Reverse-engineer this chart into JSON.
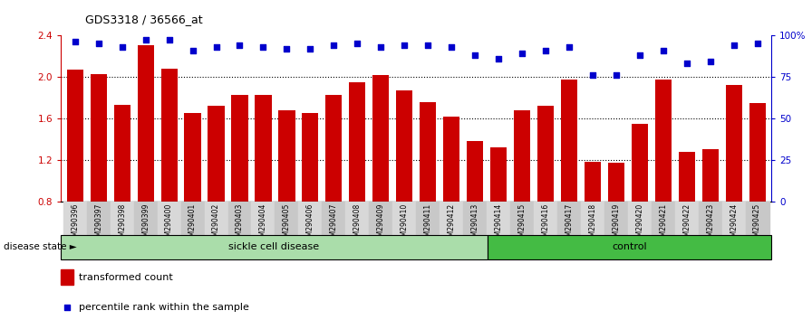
{
  "title": "GDS3318 / 36566_at",
  "samples": [
    "GSM290396",
    "GSM290397",
    "GSM290398",
    "GSM290399",
    "GSM290400",
    "GSM290401",
    "GSM290402",
    "GSM290403",
    "GSM290404",
    "GSM290405",
    "GSM290406",
    "GSM290407",
    "GSM290408",
    "GSM290409",
    "GSM290410",
    "GSM290411",
    "GSM290412",
    "GSM290413",
    "GSM290414",
    "GSM290415",
    "GSM290416",
    "GSM290417",
    "GSM290418",
    "GSM290419",
    "GSM290420",
    "GSM290421",
    "GSM290422",
    "GSM290423",
    "GSM290424",
    "GSM290425"
  ],
  "bar_values": [
    2.07,
    2.03,
    1.73,
    2.3,
    2.08,
    1.65,
    1.72,
    1.83,
    1.83,
    1.68,
    1.65,
    1.83,
    1.95,
    2.02,
    1.87,
    1.76,
    1.62,
    1.38,
    1.32,
    1.68,
    1.72,
    1.97,
    1.18,
    1.17,
    1.55,
    1.97,
    1.28,
    1.3,
    1.92,
    1.75
  ],
  "percentile_values": [
    96,
    95,
    93,
    97,
    97,
    91,
    93,
    94,
    93,
    92,
    92,
    94,
    95,
    93,
    94,
    94,
    93,
    88,
    86,
    89,
    91,
    93,
    76,
    76,
    88,
    91,
    83,
    84,
    94,
    95
  ],
  "sickle_count": 18,
  "control_count": 12,
  "bar_color": "#CC0000",
  "percentile_color": "#0000CC",
  "sickle_color": "#AADDAA",
  "control_color": "#44BB44",
  "ylim_left": [
    0.8,
    2.4
  ],
  "ylim_right": [
    0,
    100
  ],
  "yticks_left": [
    0.8,
    1.2,
    1.6,
    2.0,
    2.4
  ],
  "yticks_right": [
    0,
    25,
    50,
    75,
    100
  ],
  "ytick_labels_right": [
    "0",
    "25",
    "50",
    "75",
    "100%"
  ],
  "grid_lines": [
    1.2,
    1.6,
    2.0
  ],
  "legend_bar_label": "transformed count",
  "legend_pct_label": "percentile rank within the sample",
  "group_label": "disease state",
  "sickle_label": "sickle cell disease",
  "control_label": "control",
  "bar_bottom": 0.8
}
